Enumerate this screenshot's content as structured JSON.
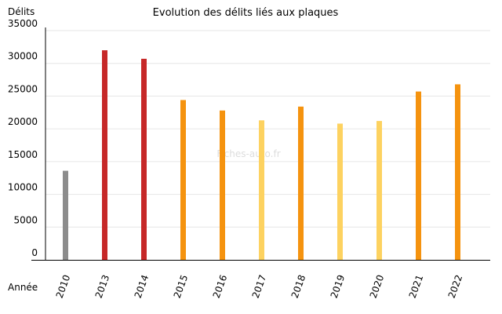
{
  "chart_data": {
    "type": "bar",
    "title": "Evolution des délits liés aux plaques",
    "ylabel": "Délits",
    "xlabel": "Année",
    "ylim": [
      0,
      35000
    ],
    "yticks": [
      0,
      5000,
      10000,
      15000,
      20000,
      25000,
      30000,
      35000
    ],
    "grid": true,
    "categories": [
      "2010",
      "2013",
      "2014",
      "2015",
      "2016",
      "2017",
      "2018",
      "2019",
      "2020",
      "2021",
      "2022"
    ],
    "values": [
      13600,
      32000,
      30700,
      24400,
      22800,
      21300,
      23400,
      20800,
      21200,
      25700,
      26800
    ],
    "bar_colors": [
      "#8c8c8c",
      "#c62828",
      "#c62828",
      "#f5930f",
      "#f5930f",
      "#fdd260",
      "#f5930f",
      "#fdd260",
      "#fdd260",
      "#f5930f",
      "#f5930f"
    ]
  },
  "watermark": "Fiches-auto.fr"
}
